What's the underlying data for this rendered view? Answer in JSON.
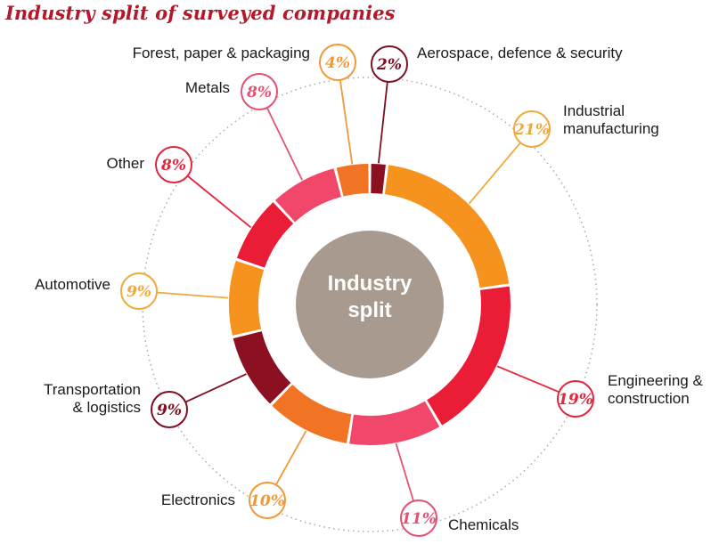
{
  "chart_data": {
    "type": "pie",
    "title": "Industry split of surveyed companies",
    "center_label": [
      "Industry",
      "split"
    ],
    "slices": [
      {
        "label": [
          "Aerospace, defence & security"
        ],
        "value": 2,
        "display": "2%",
        "color": "#8a1022",
        "bubble_color": "#7d1020"
      },
      {
        "label": [
          "Industrial",
          "manufacturing"
        ],
        "value": 21,
        "display": "21%",
        "color": "#f6921e",
        "bubble_color": "#f0a93a"
      },
      {
        "label": [
          "Engineering &",
          "construction"
        ],
        "value": 19,
        "display": "19%",
        "color": "#ea1c36",
        "bubble_color": "#e3263d"
      },
      {
        "label": [
          "Chemicals"
        ],
        "value": 11,
        "display": "11%",
        "color": "#f0476a",
        "bubble_color": "#e55173"
      },
      {
        "label": [
          "Electronics"
        ],
        "value": 10,
        "display": "10%",
        "color": "#f07423",
        "bubble_color": "#ef9a38"
      },
      {
        "label": [
          "Transportation",
          "& logistics"
        ],
        "value": 9,
        "display": "9%",
        "color": "#8a1022",
        "bubble_color": "#7d1020"
      },
      {
        "label": [
          "Automotive"
        ],
        "value": 9,
        "display": "9%",
        "color": "#f6921e",
        "bubble_color": "#f0a93a"
      },
      {
        "label": [
          "Other"
        ],
        "value": 8,
        "display": "8%",
        "color": "#ea1c36",
        "bubble_color": "#e3263d"
      },
      {
        "label": [
          "Metals"
        ],
        "value": 8,
        "display": "8%",
        "color": "#f0476a",
        "bubble_color": "#e55173"
      },
      {
        "label": [
          "Forest, paper & packaging"
        ],
        "value": 4,
        "display": "4%",
        "color": "#f07423",
        "bubble_color": "#ef9a38"
      }
    ],
    "center_color": "#a89a8e"
  }
}
